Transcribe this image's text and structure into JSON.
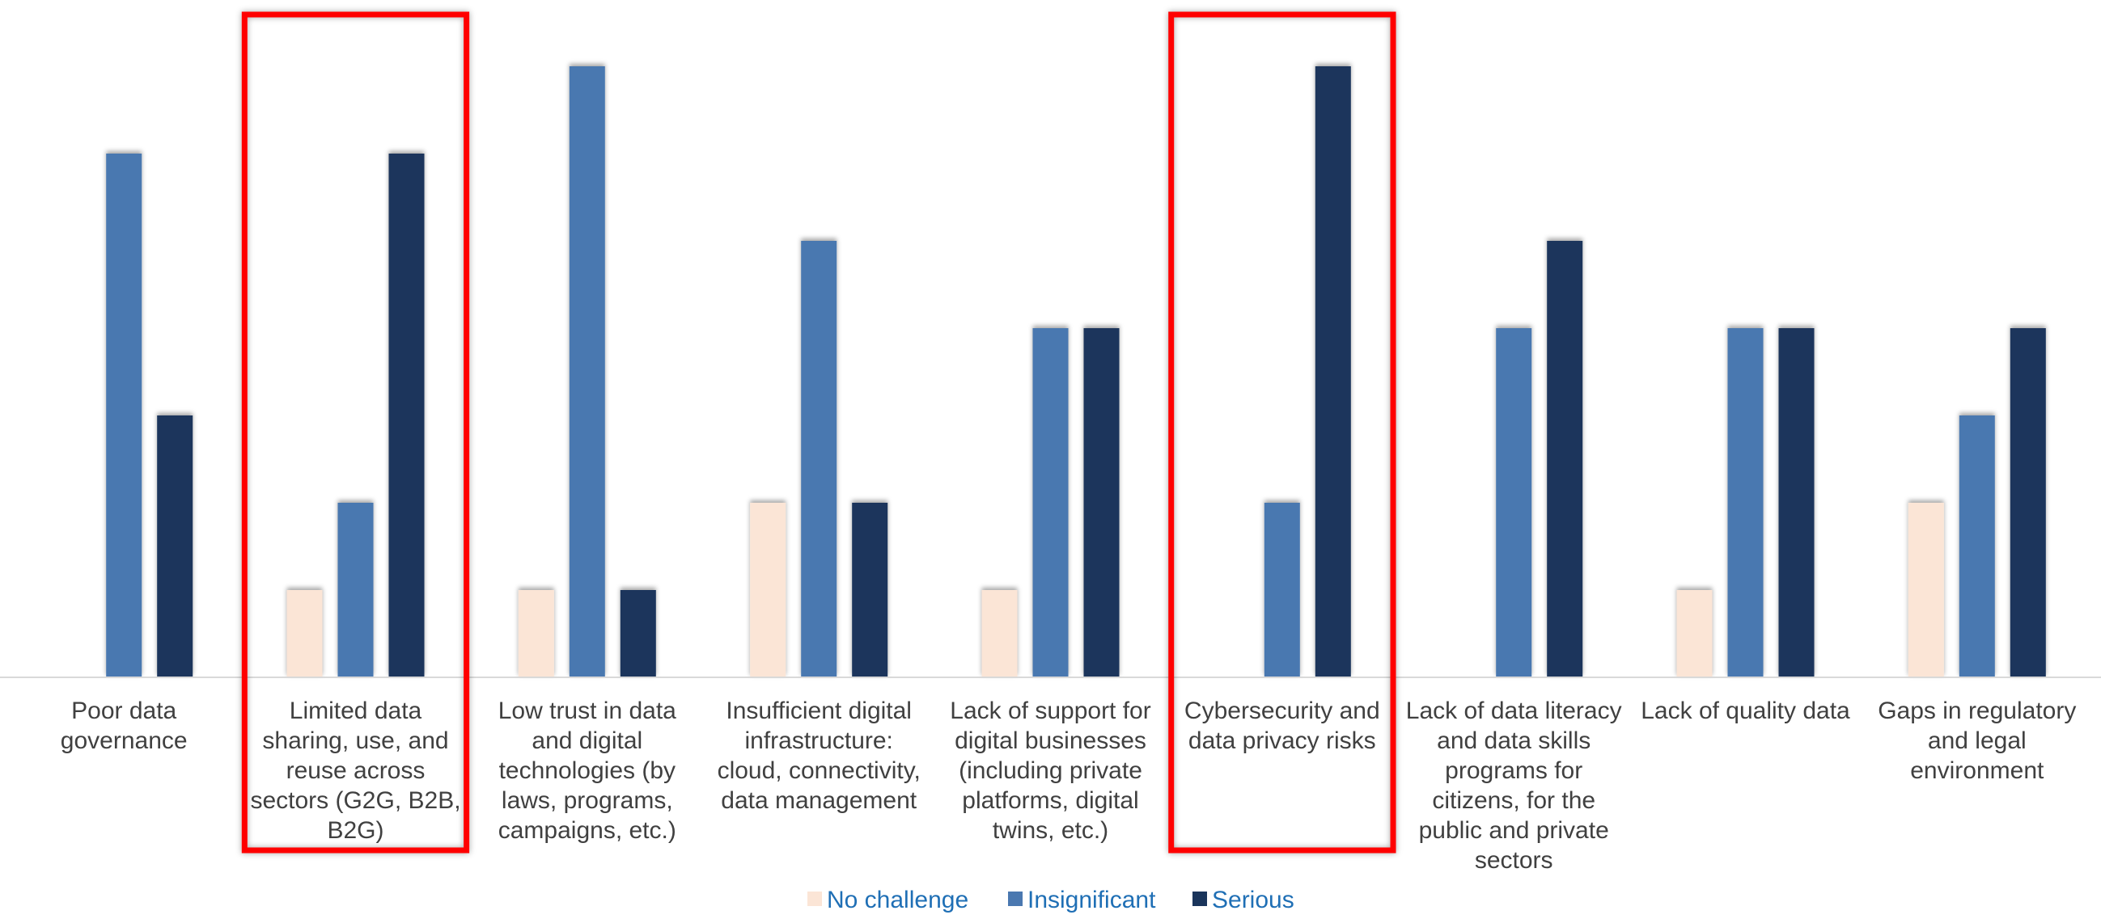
{
  "chart_data": {
    "type": "bar",
    "title": "",
    "xlabel": "",
    "ylabel": "",
    "ylim": [
      0,
      7
    ],
    "grid": false,
    "legend_position": "bottom-center",
    "categories": [
      "Poor data governance",
      "Limited data sharing, use, and reuse across sectors (G2G, B2B, B2G)",
      "Low trust in data and digital technologies (by laws, programs, campaigns, etc.)",
      "Insufficient digital infrastructure: cloud, connectivity, data management",
      "Lack of support for digital businesses (including private platforms, digital twins, etc.)",
      "Cybersecurity and data privacy risks",
      "Lack of data literacy and data skills programs for citizens, for the public and private sectors",
      "Lack of quality data",
      "Gaps in regulatory and legal environment"
    ],
    "category_label_lines": [
      [
        "Poor data",
        "governance"
      ],
      [
        "Limited data",
        "sharing, use, and",
        "reuse across",
        "sectors (G2G, B2B,",
        "B2G)"
      ],
      [
        "Low trust in data",
        "and digital",
        "technologies (by",
        "laws, programs,",
        "campaigns, etc.)"
      ],
      [
        "Insufficient digital",
        "infrastructure:",
        "cloud, connectivity,",
        "data management"
      ],
      [
        "Lack of support for",
        "digital businesses",
        "(including private",
        "platforms, digital",
        "twins, etc.)"
      ],
      [
        "Cybersecurity and",
        "data privacy risks"
      ],
      [
        "Lack of data literacy",
        "and data skills",
        "programs for",
        "citizens, for the",
        "public and private",
        "sectors"
      ],
      [
        "Lack of quality data"
      ],
      [
        "Gaps in regulatory",
        "and legal",
        "environment"
      ]
    ],
    "series": [
      {
        "name": "No challenge",
        "color": "#fbe5d6",
        "values": [
          0,
          1,
          1,
          2,
          1,
          0,
          0,
          1,
          2
        ]
      },
      {
        "name": "Insignificant",
        "color": "#4a78b0",
        "values": [
          6,
          2,
          7,
          5,
          4,
          2,
          4,
          4,
          3
        ]
      },
      {
        "name": "Serious",
        "color": "#1a355b",
        "values": [
          3,
          6,
          1,
          2,
          4,
          7,
          5,
          4,
          4
        ]
      }
    ],
    "highlighted_categories": [
      1,
      5
    ],
    "highlight_color": "#ff0000"
  }
}
